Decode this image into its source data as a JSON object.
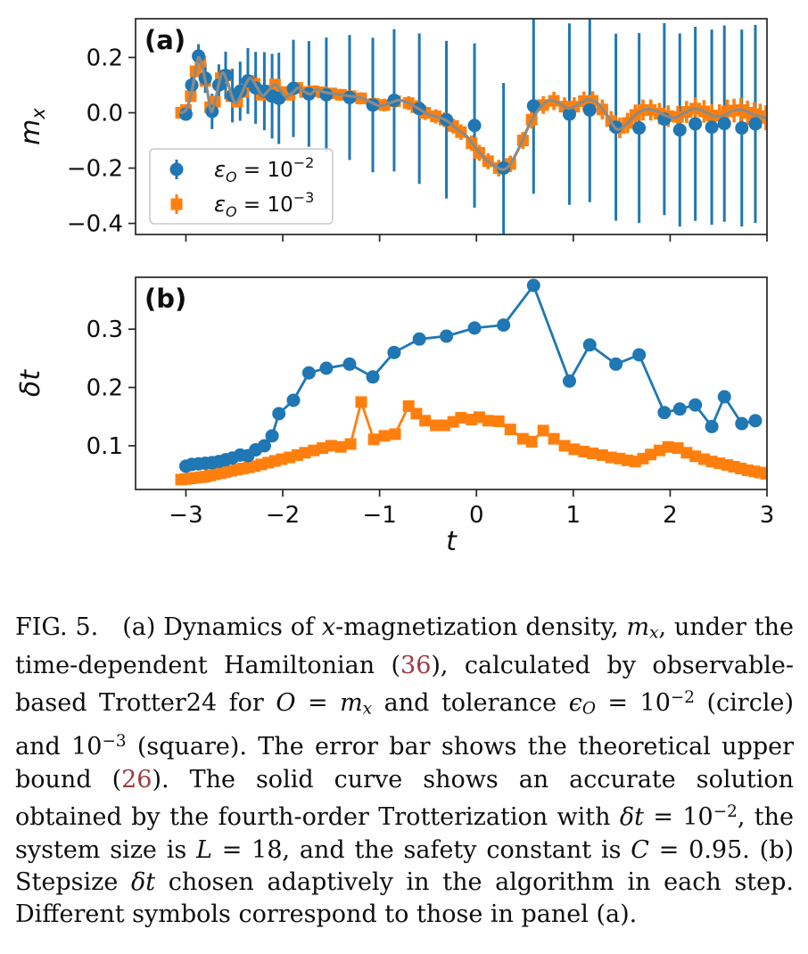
{
  "page": {
    "background": "#ffffff"
  },
  "colors": {
    "circle_series": "#1f77b4",
    "square_series": "#ff7f0e",
    "accurate_curve": "#8b8b86",
    "axis": "#262626",
    "text": "#0e0e0e",
    "ref_link": "#9e3a40",
    "legend_border": "#c8c8c8"
  },
  "chart_data": [
    {
      "id": "panel_a",
      "type": "scatter",
      "panel_label": "(a)",
      "xlabel": "",
      "ylabel": "m",
      "ylabel_sub": "x",
      "xlim": [
        -3.52,
        3.0
      ],
      "ylim": [
        -0.44,
        0.34
      ],
      "xticks": [
        -3,
        -2,
        -1,
        0,
        1,
        2,
        3
      ],
      "xtick_labels": [],
      "yticks": [
        0.2,
        0.0,
        -0.2,
        -0.4
      ],
      "ytick_labels": [
        "0.2",
        "0.0",
        "−0.2",
        "−0.4"
      ],
      "grid": false,
      "legend": {
        "position": "lower left",
        "items": [
          {
            "marker": "circle",
            "color": "#1f77b4",
            "sym": "ε",
            "sub": "O",
            "eq": " = 10",
            "exp": "−2"
          },
          {
            "marker": "square",
            "color": "#ff7f0e",
            "sym": "ε",
            "sub": "O",
            "eq": " = 10",
            "exp": "−3"
          }
        ]
      },
      "series": [
        {
          "name": "tolerance 10^-2 (circle)",
          "marker": "circle",
          "color": "#1f77b4",
          "t": [
            -3.0,
            -2.94,
            -2.87,
            -2.8,
            -2.73,
            -2.66,
            -2.59,
            -2.52,
            -2.44,
            -2.36,
            -2.28,
            -2.19,
            -2.11,
            -2.04,
            -1.89,
            -1.73,
            -1.55,
            -1.31,
            -1.07,
            -0.85,
            -0.59,
            -0.31,
            -0.02,
            0.28,
            0.59,
            0.96,
            1.17,
            1.44,
            1.68,
            1.94,
            2.1,
            2.26,
            2.43,
            2.56,
            2.74,
            2.88
          ],
          "v": [
            -0.005,
            0.1,
            0.205,
            0.125,
            0.005,
            0.1,
            0.135,
            0.062,
            0.078,
            0.115,
            0.09,
            0.078,
            0.06,
            0.052,
            0.088,
            0.068,
            0.065,
            0.055,
            0.028,
            0.045,
            0.015,
            -0.025,
            -0.046,
            -0.2,
            0.025,
            -0.005,
            0.01,
            -0.052,
            -0.055,
            -0.023,
            -0.062,
            -0.04,
            -0.052,
            -0.039,
            -0.055,
            -0.04
          ],
          "err": [
            0.02,
            0.031,
            0.043,
            0.053,
            0.064,
            0.075,
            0.086,
            0.097,
            0.107,
            0.119,
            0.13,
            0.141,
            0.153,
            0.165,
            0.176,
            0.191,
            0.207,
            0.226,
            0.243,
            0.257,
            0.272,
            0.285,
            0.297,
            0.308,
            0.318,
            0.328,
            0.333,
            0.338,
            0.343,
            0.347,
            0.349,
            0.351,
            0.353,
            0.355,
            0.356,
            0.358
          ]
        },
        {
          "name": "tolerance 10^-3 (square)",
          "marker": "square",
          "color": "#ff7f0e",
          "t": [
            -3.05,
            -3.0,
            -2.95,
            -2.9,
            -2.85,
            -2.8,
            -2.75,
            -2.7,
            -2.64,
            -2.59,
            -2.53,
            -2.47,
            -2.41,
            -2.35,
            -2.29,
            -2.22,
            -2.15,
            -2.08,
            -2.01,
            -1.93,
            -1.85,
            -1.77,
            -1.68,
            -1.59,
            -1.5,
            -1.4,
            -1.3,
            -1.19,
            -1.06,
            -0.95,
            -0.84,
            -0.7,
            -0.62,
            -0.53,
            -0.42,
            -0.33,
            -0.24,
            -0.16,
            -0.05,
            0.03,
            0.12,
            0.23,
            0.35,
            0.48,
            0.57,
            0.69,
            0.8,
            0.91,
            1.01,
            1.11,
            1.2,
            1.3,
            1.39,
            1.48,
            1.56,
            1.64,
            1.72,
            1.8,
            1.89,
            1.98,
            2.08,
            2.17,
            2.26,
            2.35,
            2.43,
            2.51,
            2.59,
            2.66,
            2.73,
            2.8,
            2.87,
            2.93,
            2.99
          ],
          "v": [
            0.0,
            0.01,
            0.06,
            0.15,
            0.185,
            0.115,
            0.02,
            0.04,
            0.125,
            0.135,
            0.06,
            0.04,
            0.075,
            0.115,
            0.105,
            0.065,
            0.08,
            0.102,
            0.075,
            0.065,
            0.09,
            0.075,
            0.078,
            0.074,
            0.07,
            0.065,
            0.06,
            0.052,
            0.032,
            0.028,
            0.042,
            0.035,
            0.02,
            0.0,
            -0.013,
            -0.025,
            -0.048,
            -0.07,
            -0.11,
            -0.145,
            -0.175,
            -0.2,
            -0.185,
            -0.1,
            -0.025,
            0.028,
            0.043,
            0.022,
            0.022,
            0.042,
            0.043,
            0.012,
            -0.03,
            -0.055,
            -0.037,
            -0.008,
            0.01,
            0.01,
            -0.003,
            -0.012,
            -0.015,
            0.003,
            0.015,
            0.005,
            -0.01,
            -0.011,
            0.005,
            0.008,
            0.01,
            0.0,
            -0.005,
            -0.012,
            -0.018
          ],
          "err": [
            0.012,
            0.012,
            0.012,
            0.013,
            0.013,
            0.013,
            0.013,
            0.014,
            0.014,
            0.014,
            0.015,
            0.015,
            0.015,
            0.016,
            0.016,
            0.016,
            0.017,
            0.017,
            0.017,
            0.018,
            0.018,
            0.019,
            0.019,
            0.02,
            0.02,
            0.021,
            0.021,
            0.022,
            0.023,
            0.023,
            0.024,
            0.025,
            0.025,
            0.026,
            0.026,
            0.027,
            0.027,
            0.028,
            0.028,
            0.029,
            0.029,
            0.03,
            0.03,
            0.031,
            0.032,
            0.032,
            0.033,
            0.034,
            0.034,
            0.035,
            0.035,
            0.036,
            0.036,
            0.037,
            0.037,
            0.038,
            0.038,
            0.038,
            0.039,
            0.039,
            0.04,
            0.04,
            0.041,
            0.041,
            0.042,
            0.042,
            0.043,
            0.043,
            0.044,
            0.044,
            0.044,
            0.045,
            0.045
          ]
        }
      ],
      "accurate_curve": {
        "name": "fourth-order Trotterization accurate solution",
        "color": "#8b8b86",
        "t": [
          -3.05,
          -3.0,
          -2.95,
          -2.9,
          -2.87,
          -2.83,
          -2.78,
          -2.74,
          -2.7,
          -2.66,
          -2.62,
          -2.57,
          -2.52,
          -2.48,
          -2.43,
          -2.38,
          -2.33,
          -2.27,
          -2.21,
          -2.15,
          -2.08,
          -2.02,
          -1.97,
          -1.9,
          -1.84,
          -1.77,
          -1.71,
          -1.65,
          -1.58,
          -1.5,
          -1.4,
          -1.3,
          -1.2,
          -1.1,
          -1.0,
          -0.9,
          -0.8,
          -0.7,
          -0.6,
          -0.5,
          -0.4,
          -0.3,
          -0.2,
          -0.1,
          0.0,
          0.1,
          0.2,
          0.28,
          0.35,
          0.45,
          0.55,
          0.65,
          0.75,
          0.85,
          0.95,
          1.05,
          1.15,
          1.25,
          1.35,
          1.45,
          1.55,
          1.65,
          1.75,
          1.85,
          1.95,
          2.05,
          2.15,
          2.25,
          2.35,
          2.45,
          2.55,
          2.65,
          2.75,
          2.85,
          2.95,
          3.0
        ],
        "v": [
          0.0,
          0.01,
          0.06,
          0.15,
          0.2,
          0.165,
          0.08,
          0.005,
          0.04,
          0.105,
          0.145,
          0.11,
          0.055,
          0.035,
          0.065,
          0.105,
          0.125,
          0.095,
          0.062,
          0.08,
          0.102,
          0.08,
          0.058,
          0.072,
          0.09,
          0.075,
          0.068,
          0.085,
          0.075,
          0.07,
          0.065,
          0.06,
          0.055,
          0.04,
          0.025,
          0.035,
          0.045,
          0.035,
          0.015,
          -0.005,
          -0.015,
          -0.03,
          -0.06,
          -0.085,
          -0.13,
          -0.17,
          -0.195,
          -0.205,
          -0.185,
          -0.12,
          -0.04,
          0.015,
          0.045,
          0.035,
          0.015,
          0.03,
          0.048,
          0.035,
          -0.01,
          -0.06,
          -0.04,
          -0.005,
          0.012,
          0.008,
          -0.01,
          -0.018,
          0.0,
          0.015,
          0.005,
          -0.012,
          -0.01,
          0.008,
          0.01,
          -0.005,
          -0.015,
          -0.02
        ]
      }
    },
    {
      "id": "panel_b",
      "type": "line",
      "panel_label": "(b)",
      "xlabel": "t",
      "ylabel": "δt",
      "ylabel_sub": "",
      "xlim": [
        -3.52,
        3.0
      ],
      "ylim": [
        0.025,
        0.389
      ],
      "xticks": [
        -3,
        -2,
        -1,
        0,
        1,
        2,
        3
      ],
      "xtick_labels": [
        "−3",
        "−2",
        "−1",
        "0",
        "1",
        "2",
        "3"
      ],
      "yticks": [
        0.1,
        0.2,
        0.3
      ],
      "ytick_labels": [
        "0.1",
        "0.2",
        "0.3"
      ],
      "grid": false,
      "series": [
        {
          "name": "tolerance 10^-2 (circle)",
          "marker": "circle",
          "color": "#1f77b4",
          "t": [
            -3.0,
            -2.94,
            -2.87,
            -2.8,
            -2.73,
            -2.66,
            -2.59,
            -2.52,
            -2.44,
            -2.36,
            -2.28,
            -2.19,
            -2.11,
            -2.04,
            -1.89,
            -1.73,
            -1.55,
            -1.31,
            -1.07,
            -0.85,
            -0.59,
            -0.31,
            -0.02,
            0.28,
            0.59,
            0.96,
            1.17,
            1.44,
            1.68,
            1.94,
            2.1,
            2.26,
            2.43,
            2.56,
            2.74,
            2.88
          ],
          "v": [
            0.065,
            0.068,
            0.069,
            0.07,
            0.071,
            0.073,
            0.076,
            0.079,
            0.084,
            0.083,
            0.093,
            0.1,
            0.117,
            0.155,
            0.178,
            0.225,
            0.233,
            0.24,
            0.218,
            0.26,
            0.283,
            0.288,
            0.302,
            0.307,
            0.375,
            0.211,
            0.273,
            0.24,
            0.256,
            0.157,
            0.163,
            0.17,
            0.133,
            0.184,
            0.138,
            0.143
          ]
        },
        {
          "name": "tolerance 10^-3 (square)",
          "marker": "square",
          "color": "#ff7f0e",
          "t": [
            -3.05,
            -3.0,
            -2.95,
            -2.9,
            -2.85,
            -2.8,
            -2.75,
            -2.7,
            -2.64,
            -2.59,
            -2.53,
            -2.47,
            -2.41,
            -2.35,
            -2.29,
            -2.22,
            -2.15,
            -2.08,
            -2.01,
            -1.93,
            -1.85,
            -1.77,
            -1.68,
            -1.59,
            -1.5,
            -1.4,
            -1.3,
            -1.19,
            -1.06,
            -0.95,
            -0.84,
            -0.7,
            -0.62,
            -0.53,
            -0.42,
            -0.33,
            -0.24,
            -0.16,
            -0.05,
            0.03,
            0.12,
            0.23,
            0.35,
            0.48,
            0.57,
            0.69,
            0.8,
            0.91,
            1.01,
            1.11,
            1.2,
            1.3,
            1.39,
            1.48,
            1.56,
            1.64,
            1.72,
            1.8,
            1.89,
            1.98,
            2.08,
            2.17,
            2.26,
            2.35,
            2.43,
            2.51,
            2.59,
            2.66,
            2.73,
            2.8,
            2.87,
            2.93,
            2.99
          ],
          "v": [
            0.042,
            0.043,
            0.044,
            0.045,
            0.046,
            0.047,
            0.049,
            0.051,
            0.053,
            0.055,
            0.057,
            0.059,
            0.061,
            0.063,
            0.065,
            0.068,
            0.071,
            0.074,
            0.077,
            0.08,
            0.084,
            0.088,
            0.092,
            0.096,
            0.1,
            0.098,
            0.103,
            0.175,
            0.111,
            0.117,
            0.12,
            0.168,
            0.155,
            0.143,
            0.135,
            0.135,
            0.141,
            0.148,
            0.145,
            0.149,
            0.143,
            0.142,
            0.128,
            0.112,
            0.107,
            0.126,
            0.112,
            0.1,
            0.094,
            0.09,
            0.087,
            0.084,
            0.08,
            0.078,
            0.075,
            0.073,
            0.078,
            0.085,
            0.092,
            0.098,
            0.096,
            0.088,
            0.082,
            0.077,
            0.073,
            0.07,
            0.067,
            0.064,
            0.061,
            0.058,
            0.056,
            0.054,
            0.052
          ]
        }
      ]
    }
  ],
  "caption": {
    "figure_number": "FIG. 5.",
    "segments": [
      {
        "s": "t",
        "x": "FIG. 5.  (a) Dynamics of "
      },
      {
        "s": "i",
        "x": "x"
      },
      {
        "s": "t",
        "x": "-magnetization density, "
      },
      {
        "s": "i",
        "x": "m"
      },
      {
        "s": "is",
        "x": "x"
      },
      {
        "s": "t",
        "x": ", under the time-dependent Hamiltonian ("
      },
      {
        "s": "r",
        "x": "36"
      },
      {
        "s": "t",
        "x": "), calculated by observable-based Trotter24 for "
      },
      {
        "s": "i",
        "x": "O"
      },
      {
        "s": "t",
        "x": " = "
      },
      {
        "s": "i",
        "x": "m"
      },
      {
        "s": "is",
        "x": "x"
      },
      {
        "s": "t",
        "x": " and tolerance "
      },
      {
        "s": "i",
        "x": "ϵ"
      },
      {
        "s": "is",
        "x": "O"
      },
      {
        "s": "t",
        "x": " = 10"
      },
      {
        "s": "s",
        "x": "−2"
      },
      {
        "s": "t",
        "x": " (circle) and 10"
      },
      {
        "s": "s",
        "x": "−3"
      },
      {
        "s": "t",
        "x": " (square).  The error bar shows the theoretical upper bound ("
      },
      {
        "s": "r",
        "x": "26"
      },
      {
        "s": "t",
        "x": ").  The solid curve shows an accurate solution obtained by the fourth-order Trotterization with "
      },
      {
        "s": "i",
        "x": "δt"
      },
      {
        "s": "t",
        "x": " = 10"
      },
      {
        "s": "s",
        "x": "−2"
      },
      {
        "s": "t",
        "x": ", the system size is "
      },
      {
        "s": "i",
        "x": "L"
      },
      {
        "s": "t",
        "x": " = 18, and the safety constant is "
      },
      {
        "s": "i",
        "x": "C"
      },
      {
        "s": "t",
        "x": " = 0.95.  (b) Stepsize "
      },
      {
        "s": "i",
        "x": "δt"
      },
      {
        "s": "t",
        "x": " chosen adaptively in the algorithm in each step.  Different symbols correspond to those in panel (a)."
      }
    ]
  }
}
